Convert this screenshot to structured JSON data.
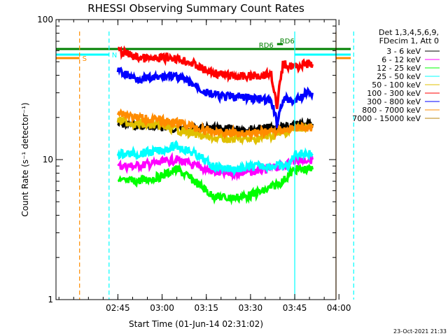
{
  "chart_data": {
    "type": "line",
    "title": "RHESSI Observing Summary Count Rates",
    "xlabel": "Start Time (01-Jun-14 02:31:02)",
    "ylabel": "Count Rate (s⁻¹ detector⁻¹)",
    "yscale": "log",
    "ylim": [
      1,
      100
    ],
    "xlim_minutes": [
      -7,
      88
    ],
    "x_ticks": [
      {
        "t": 14,
        "label": "02:45"
      },
      {
        "t": 29,
        "label": "03:00"
      },
      {
        "t": 44,
        "label": "03:15"
      },
      {
        "t": 59,
        "label": "03:30"
      },
      {
        "t": 74,
        "label": "03:45"
      },
      {
        "t": 89,
        "label": "04:00"
      }
    ],
    "y_ticks": [
      {
        "v": 1,
        "label": "1"
      },
      {
        "v": 10,
        "label": "10"
      },
      {
        "v": 100,
        "label": "100"
      }
    ],
    "legend_header": [
      "Det 1,3,4,5,6,9,",
      "FDecim 1, Att 0"
    ],
    "legend_placement": "right",
    "series": [
      {
        "name": "3 - 6 keV",
        "color": "#000000",
        "points": [
          [
            14,
            18
          ],
          [
            22,
            17.5
          ],
          [
            30,
            17
          ],
          [
            40,
            16.5
          ],
          [
            50,
            16.5
          ],
          [
            60,
            16.5
          ],
          [
            68,
            17
          ],
          [
            72,
            17
          ],
          [
            76,
            18
          ],
          [
            80,
            18
          ]
        ]
      },
      {
        "name": "6 - 12 keV",
        "color": "#ff00ff",
        "points": [
          [
            14,
            9
          ],
          [
            20,
            9
          ],
          [
            28,
            9.5
          ],
          [
            34,
            10
          ],
          [
            40,
            9
          ],
          [
            48,
            8
          ],
          [
            56,
            8
          ],
          [
            64,
            8.5
          ],
          [
            70,
            9
          ],
          [
            74,
            10
          ],
          [
            80,
            10
          ]
        ]
      },
      {
        "name": "12 - 25 keV",
        "color": "#00ff00",
        "points": [
          [
            14,
            7
          ],
          [
            20,
            7
          ],
          [
            28,
            7.5
          ],
          [
            34,
            8.5
          ],
          [
            40,
            7
          ],
          [
            46,
            5.5
          ],
          [
            52,
            5.3
          ],
          [
            58,
            5.5
          ],
          [
            64,
            6
          ],
          [
            70,
            7
          ],
          [
            74,
            8.5
          ],
          [
            80,
            8.5
          ]
        ]
      },
      {
        "name": "25 - 50 keV",
        "color": "#00ffff",
        "points": [
          [
            14,
            11
          ],
          [
            20,
            11
          ],
          [
            28,
            11.5
          ],
          [
            34,
            12.5
          ],
          [
            40,
            11
          ],
          [
            46,
            9
          ],
          [
            54,
            8.5
          ],
          [
            62,
            9
          ],
          [
            68,
            9
          ],
          [
            72,
            9
          ],
          [
            74,
            11
          ],
          [
            80,
            11
          ]
        ]
      },
      {
        "name": "50 - 100 keV",
        "color": "#e0c000",
        "points": [
          [
            14,
            19
          ],
          [
            20,
            18
          ],
          [
            28,
            17.5
          ],
          [
            36,
            16
          ],
          [
            44,
            14.5
          ],
          [
            52,
            14
          ],
          [
            60,
            14
          ],
          [
            68,
            15
          ],
          [
            72,
            16
          ],
          [
            76,
            17
          ],
          [
            80,
            17
          ]
        ]
      },
      {
        "name": "100 - 300 keV",
        "color": "#ff0000",
        "points": [
          [
            14,
            60
          ],
          [
            20,
            54
          ],
          [
            26,
            52
          ],
          [
            32,
            54
          ],
          [
            38,
            50
          ],
          [
            44,
            43
          ],
          [
            50,
            40
          ],
          [
            56,
            39
          ],
          [
            62,
            40
          ],
          [
            66,
            41
          ],
          [
            68,
            22
          ],
          [
            70,
            48
          ],
          [
            74,
            46
          ],
          [
            78,
            48
          ],
          [
            80,
            48
          ]
        ]
      },
      {
        "name": "300 - 800 keV",
        "color": "#0000ff",
        "points": [
          [
            14,
            43
          ],
          [
            20,
            38
          ],
          [
            26,
            38
          ],
          [
            32,
            40
          ],
          [
            38,
            36
          ],
          [
            44,
            30
          ],
          [
            50,
            28
          ],
          [
            56,
            28
          ],
          [
            62,
            27
          ],
          [
            66,
            26
          ],
          [
            68,
            18
          ],
          [
            70,
            27
          ],
          [
            74,
            26
          ],
          [
            78,
            30
          ],
          [
            80,
            30
          ]
        ]
      },
      {
        "name": "800 - 7000 keV",
        "color": "#ff8c00",
        "points": [
          [
            14,
            22
          ],
          [
            20,
            20
          ],
          [
            28,
            19
          ],
          [
            36,
            18
          ],
          [
            44,
            16
          ],
          [
            52,
            15.5
          ],
          [
            60,
            15.5
          ],
          [
            68,
            16
          ],
          [
            72,
            16.5
          ],
          [
            76,
            17
          ],
          [
            80,
            17
          ]
        ]
      },
      {
        "name": "7000 - 15000 keV",
        "color": "#b8860b",
        "points": []
      }
    ],
    "state_flags": [
      {
        "label": "S",
        "color": "#ff8c00",
        "segments": [
          [
            -7,
            1
          ],
          [
            88,
            93
          ]
        ],
        "y": 83
      },
      {
        "label": "N",
        "color": "#00ffff",
        "segments": [
          [
            -7,
            11
          ],
          [
            74,
            93
          ]
        ],
        "y": 78
      },
      {
        "label": "RD6",
        "color": "#008000",
        "segments": [
          [
            -7,
            93
          ]
        ],
        "y": 70
      },
      {
        "label": "RD6",
        "color": "#008000",
        "segments": [
          [
            68,
            70
          ]
        ],
        "y": 63
      }
    ],
    "vertical_markers": [
      {
        "t": 1,
        "color": "#ff8c00",
        "style": "dashed"
      },
      {
        "t": 11,
        "color": "#00ffff",
        "style": "dashed"
      },
      {
        "t": 74,
        "color": "#00ffff",
        "style": "solid"
      },
      {
        "t": 88,
        "color": "#ff8c00",
        "style": "solid"
      },
      {
        "t": 94,
        "color": "#00ffff",
        "style": "dashed"
      }
    ],
    "timestamp": "23-Oct-2021 21:33"
  }
}
